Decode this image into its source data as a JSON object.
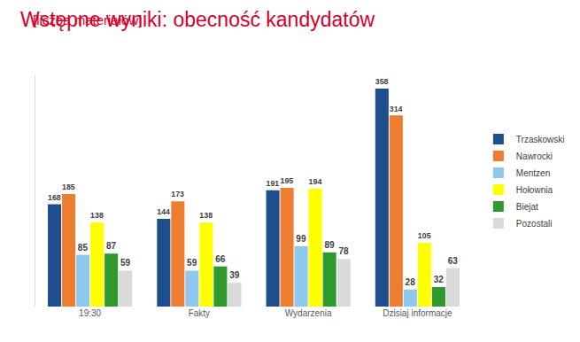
{
  "chart_data": {
    "type": "bar",
    "title": "Wstępne wyniki: obecność kandydatów",
    "subtitle": "[liczba materiałów]",
    "categories": [
      "19:30",
      "Fakty",
      "Wydarzenia",
      "Dzisiaj informacje"
    ],
    "series": [
      {
        "name": "Trzaskowski",
        "color": "#1f4e8c",
        "values": [
          168,
          144,
          191,
          358
        ]
      },
      {
        "name": "Nawrocki",
        "color": "#ed7d31",
        "values": [
          185,
          173,
          195,
          314
        ]
      },
      {
        "name": "Mentzen",
        "color": "#8fc8ef",
        "values": [
          85,
          59,
          99,
          28
        ]
      },
      {
        "name": "Hołownia",
        "color": "#ffff00",
        "values": [
          138,
          138,
          194,
          105
        ]
      },
      {
        "name": "Biejat",
        "color": "#2e9a2e",
        "values": [
          87,
          66,
          89,
          32
        ]
      },
      {
        "name": "Pozostali",
        "color": "#d9d9d9",
        "values": [
          59,
          39,
          78,
          63
        ]
      }
    ],
    "ylim": [
      0,
      380
    ],
    "yticks": [],
    "grid": false,
    "legend": "right",
    "data_labels": true,
    "tick_labels": "x"
  }
}
